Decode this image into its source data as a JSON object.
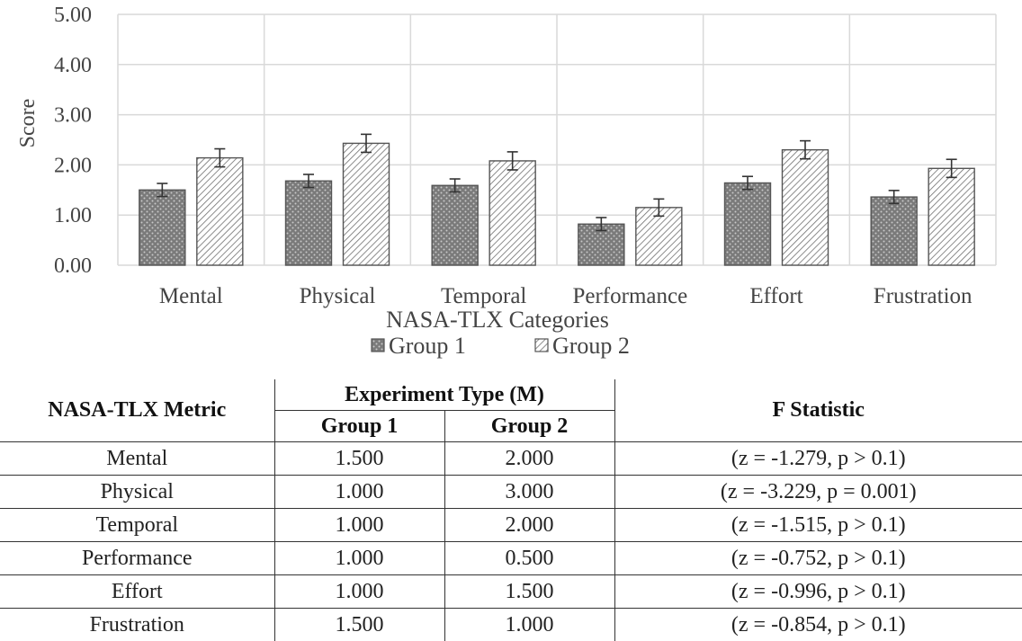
{
  "chart_data": {
    "type": "bar",
    "title": "",
    "xlabel": "NASA-TLX Categories",
    "ylabel": "Score",
    "ylim": [
      0,
      5
    ],
    "yticks": [
      "0.00",
      "1.00",
      "2.00",
      "3.00",
      "4.00",
      "5.00"
    ],
    "categories": [
      "Mental",
      "Physical",
      "Temporal",
      "Performance",
      "Effort",
      "Frustration"
    ],
    "series": [
      {
        "name": "Group 1",
        "values": [
          1.5,
          1.68,
          1.59,
          0.82,
          1.64,
          1.36
        ],
        "errors": [
          0.13,
          0.13,
          0.13,
          0.13,
          0.13,
          0.13
        ]
      },
      {
        "name": "Group 2",
        "values": [
          2.14,
          2.43,
          2.08,
          1.15,
          2.3,
          1.93
        ],
        "errors": [
          0.18,
          0.18,
          0.18,
          0.17,
          0.18,
          0.18
        ]
      }
    ],
    "legend_position": "bottom",
    "grid": true
  },
  "table": {
    "metric_header": "NASA-TLX Metric",
    "experiment_header": "Experiment Type (M)",
    "group1_header": "Group 1",
    "group2_header": "Group 2",
    "f_header": "F Statistic",
    "rows": [
      {
        "metric": "Mental",
        "g1": "1.500",
        "g2": "2.000",
        "f": "(z = -1.279, p > 0.1)"
      },
      {
        "metric": "Physical",
        "g1": "1.000",
        "g2": "3.000",
        "f": "(z = -3.229, p = 0.001)"
      },
      {
        "metric": "Temporal",
        "g1": "1.000",
        "g2": "2.000",
        "f": "(z = -1.515, p > 0.1)"
      },
      {
        "metric": "Performance",
        "g1": "1.000",
        "g2": "0.500",
        "f": "(z = -0.752, p > 0.1)"
      },
      {
        "metric": "Effort",
        "g1": "1.000",
        "g2": "1.500",
        "f": "(z = -0.996, p > 0.1)"
      },
      {
        "metric": "Frustration",
        "g1": "1.500",
        "g2": "1.000",
        "f": "(z = -0.854, p > 0.1)"
      }
    ]
  },
  "colors": {
    "bar_fill": "#7a7a7a",
    "bar_dots": "#c8c8c8",
    "hatch_line": "#6f6f6f",
    "grid": "#d9d9d9",
    "axis_text": "#444444"
  }
}
